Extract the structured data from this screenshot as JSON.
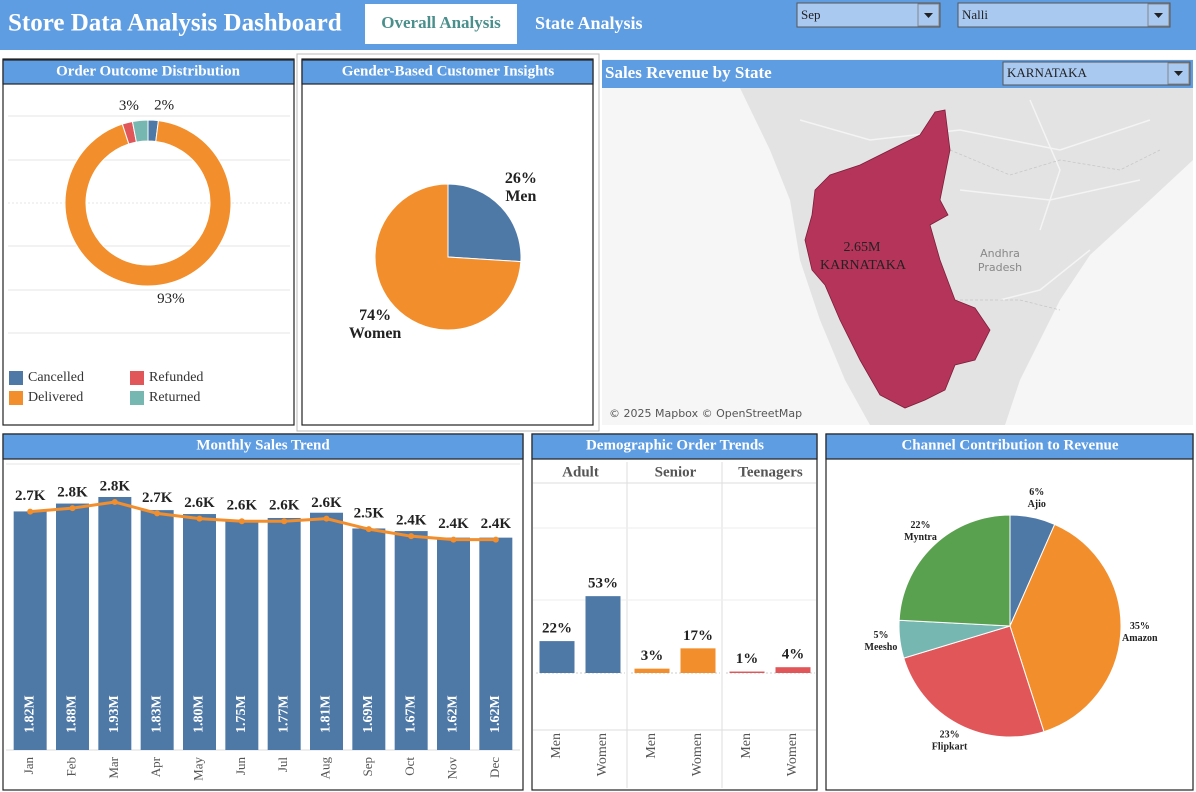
{
  "header": {
    "title": "Store Data Analysis Dashboard",
    "tabs": [
      "Overall Analysis",
      "State Analysis"
    ],
    "filters": [
      "Sep",
      "Nalli"
    ]
  },
  "chart_data": [
    {
      "type": "donut",
      "title": "Order Outcome Distribution",
      "categories": [
        "Cancelled",
        "Delivered",
        "Refunded",
        "Returned"
      ],
      "values": [
        2,
        93,
        2,
        3
      ],
      "value_labels": [
        "2%",
        "93%",
        null,
        "3%"
      ],
      "colors": [
        "#4e79a7",
        "#f28e2b",
        "#e15759",
        "#76b7b2"
      ],
      "legend": "bottom"
    },
    {
      "type": "pie",
      "title": "Gender-Based Customer Insights",
      "categories": [
        "Men",
        "Women"
      ],
      "values": [
        26,
        74
      ],
      "value_labels": [
        "26%",
        "74%"
      ],
      "colors": [
        "#4e79a7",
        "#f28e2b"
      ]
    },
    {
      "type": "map",
      "title": "Sales Revenue by State",
      "filter": "KARNATAKA",
      "categories": [
        "KARNATAKA"
      ],
      "values": [
        2650000
      ],
      "value_labels": [
        "2.65M"
      ],
      "color": "#b5345a",
      "map_labels": [
        "Andhra",
        "Pradesh"
      ],
      "attribution": "© 2025 Mapbox © OpenStreetMap"
    },
    {
      "type": "combo",
      "title": "Monthly Sales Trend",
      "categories": [
        "Jan",
        "Feb",
        "Mar",
        "Apr",
        "May",
        "Jun",
        "Jul",
        "Aug",
        "Sep",
        "Oct",
        "Nov",
        "Dec"
      ],
      "series": [
        {
          "type": "bar",
          "color": "#4e79a7",
          "values": [
            1820000,
            1880000,
            1930000,
            1830000,
            1800000,
            1750000,
            1770000,
            1810000,
            1690000,
            1670000,
            1620000,
            1620000
          ],
          "value_labels": [
            "1.82M",
            "1.88M",
            "1.93M",
            "1.83M",
            "1.80M",
            "1.75M",
            "1.77M",
            "1.81M",
            "1.69M",
            "1.67M",
            "1.62M",
            "1.62M"
          ]
        },
        {
          "type": "line",
          "color": "#f28e2b",
          "values": [
            2720,
            2760,
            2830,
            2700,
            2640,
            2610,
            2610,
            2640,
            2520,
            2440,
            2400,
            2400
          ],
          "value_labels": [
            "2.7K",
            "2.8K",
            "2.8K",
            "2.7K",
            "2.6K",
            "2.6K",
            "2.6K",
            "2.6K",
            "2.5K",
            "2.4K",
            "2.4K",
            "2.4K"
          ]
        }
      ]
    },
    {
      "type": "faceted-bar",
      "title": "Demographic Order Trends",
      "categories": [
        "Men",
        "Women"
      ],
      "series": [
        {
          "name": "Adult",
          "color": "#4e79a7",
          "values": [
            22,
            53
          ],
          "value_labels": [
            "22%",
            "53%"
          ]
        },
        {
          "name": "Senior",
          "color": "#f28e2b",
          "values": [
            3,
            17
          ],
          "value_labels": [
            "3%",
            "17%"
          ]
        },
        {
          "name": "Teenagers",
          "color": "#e15759",
          "values": [
            1,
            4
          ],
          "value_labels": [
            "1%",
            "4%"
          ]
        }
      ]
    },
    {
      "type": "pie",
      "title": "Channel Contribution to Revenue",
      "categories": [
        "Ajio",
        "Amazon",
        "Flipkart",
        "Meesho",
        "Myntra"
      ],
      "values": [
        6,
        35,
        23,
        5,
        22
      ],
      "value_labels": [
        "6%",
        "35%",
        "23%",
        "5%",
        "22%"
      ],
      "colors": [
        "#4e79a7",
        "#f28e2b",
        "#e15759",
        "#76b7b2",
        "#59a14f"
      ]
    }
  ]
}
